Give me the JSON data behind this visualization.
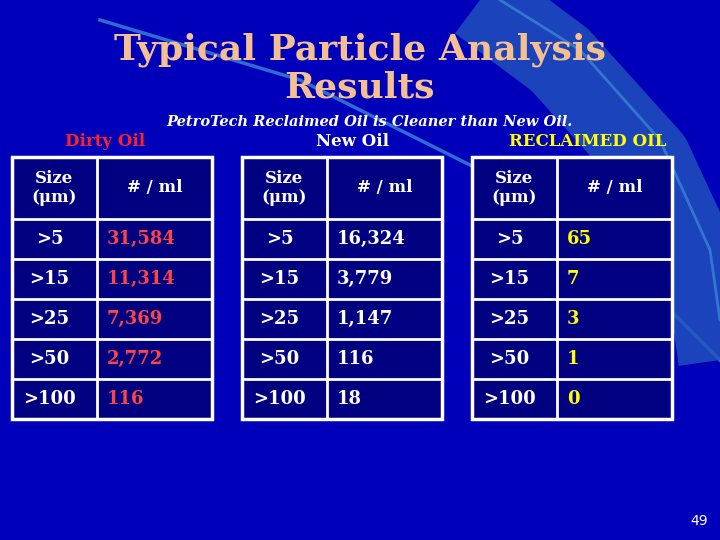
{
  "title_line1": "Typical Particle Analysis",
  "title_line2": "Results",
  "subtitle": "PetroTech Reclaimed Oil is Cleaner than New Oil.",
  "bg_color": "#0000BB",
  "title_color": "#F5C090",
  "subtitle_color": "#FFFFFF",
  "dirty_label": "Dirty Oil",
  "dirty_label_color": "#FF2222",
  "new_label": "New Oil",
  "new_label_color": "#FFFFFF",
  "reclaimed_label": "RECLAIMED OIL",
  "reclaimed_label_color": "#FFFF00",
  "table_bg": "#000080",
  "table_border": "#FFFFFF",
  "header_text_color": "#FFFFFF",
  "size_col_header": "Size\n(μm)",
  "count_col_header": "# / ml",
  "sizes": [
    ">5",
    ">15",
    ">25",
    ">50",
    ">100"
  ],
  "dirty_values": [
    "31,584",
    "11,314",
    "7,369",
    "2,772",
    "116"
  ],
  "dirty_value_color": "#FF4444",
  "new_values": [
    "16,324",
    "3,779",
    "1,147",
    "116",
    "18"
  ],
  "new_value_color": "#FFFFFF",
  "reclaimed_values": [
    "65",
    "7",
    "3",
    "1",
    "0"
  ],
  "reclaimed_value_color": "#FFFF00",
  "page_num": "49",
  "page_num_color": "#FFFFFF",
  "swoosh1_color": "#4499DD",
  "swoosh2_color": "#2255BB"
}
